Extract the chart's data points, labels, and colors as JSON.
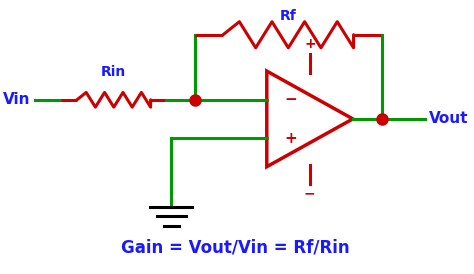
{
  "bg_color": "#ffffff",
  "green": "#009900",
  "red": "#cc0000",
  "blue": "#1a1aff",
  "black": "#000000",
  "dot_color": "#cc0000",
  "label_Vin": "Vin",
  "label_Vout": "Vout",
  "label_Rin": "Rin",
  "label_Rf": "Rf",
  "gain_text": "Gain = Vout/Vin = Rf/Rin",
  "gain_fontsize": 12,
  "label_fontsize": 10
}
